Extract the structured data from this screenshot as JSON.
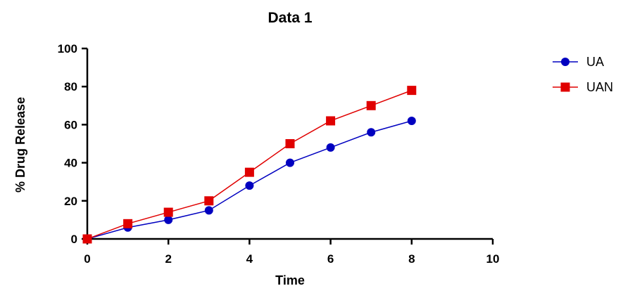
{
  "chart_data": {
    "type": "line",
    "title": "Data 1",
    "xlabel": "Time",
    "ylabel": "% Drug Release",
    "xlim": [
      0,
      10
    ],
    "ylim": [
      0,
      100
    ],
    "xticks": [
      0,
      2,
      4,
      6,
      8,
      10
    ],
    "yticks": [
      0,
      20,
      40,
      60,
      80,
      100
    ],
    "grid": false,
    "legend_position": "top-right",
    "x": [
      0,
      1,
      2,
      3,
      4,
      5,
      6,
      7,
      8
    ],
    "series": [
      {
        "name": "UA",
        "marker": "circle",
        "color": "#0000C0",
        "values": [
          0,
          6,
          10,
          15,
          28,
          40,
          48,
          56,
          62
        ]
      },
      {
        "name": "UAN",
        "marker": "square",
        "color": "#E00000",
        "values": [
          0,
          8,
          14,
          20,
          35,
          50,
          62,
          70,
          78
        ]
      }
    ]
  }
}
